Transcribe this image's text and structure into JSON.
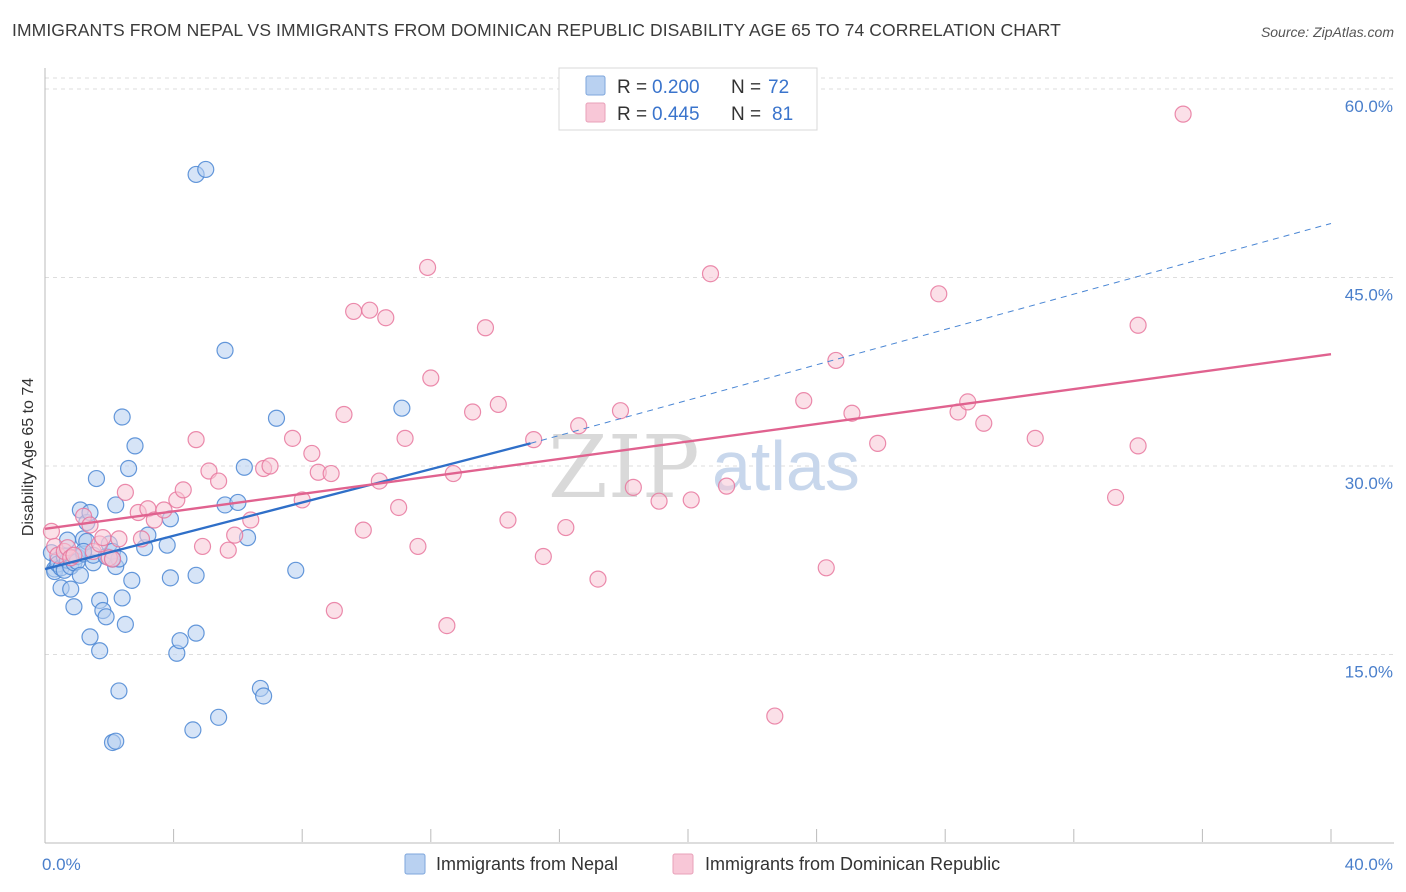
{
  "header": {
    "title": "IMMIGRANTS FROM NEPAL VS IMMIGRANTS FROM DOMINICAN REPUBLIC DISABILITY AGE 65 TO 74 CORRELATION CHART",
    "source": "Source: ZipAtlas.com"
  },
  "watermark": {
    "part1": "ZIP",
    "part2": "atlas"
  },
  "colors": {
    "nepal": "#4a86d4",
    "nepal_fill": "#b4cdf0",
    "dominican": "#e8779e",
    "dominican_fill": "#f7c6d6",
    "tick_text": "#4a7fcb",
    "grid": "#dddddd"
  },
  "legend": {
    "rows": [
      {
        "r_label": "R =",
        "r_value": "0.200",
        "n_label": "N =",
        "n_value": "72"
      },
      {
        "r_label": "R =",
        "r_value": "0.445",
        "n_label": "N =",
        "n_value": "81"
      }
    ]
  },
  "bottom_legend": [
    "Immigrants from Nepal",
    "Immigrants from Dominican Republic"
  ],
  "chart_data": {
    "type": "scatter",
    "title": "IMMIGRANTS FROM NEPAL VS IMMIGRANTS FROM DOMINICAN REPUBLIC DISABILITY AGE 65 TO 74 CORRELATION CHART",
    "xlabel": "",
    "ylabel": "Disability Age 65 to 74",
    "xlim": [
      0,
      40
    ],
    "ylim": [
      0,
      63
    ],
    "x_ticks": [
      {
        "value": 0,
        "label": "0.0%"
      },
      {
        "value": 40,
        "label": "40.0%"
      }
    ],
    "y_ticks": [
      {
        "value": 15,
        "label": "15.0%"
      },
      {
        "value": 30,
        "label": "30.0%"
      },
      {
        "value": 45,
        "label": "45.0%"
      },
      {
        "value": 60,
        "label": "60.0%"
      }
    ],
    "series": [
      {
        "name": "Immigrants from Nepal",
        "r": 0.2,
        "n": 72,
        "trend": {
          "x0": 0,
          "y0": 21.8,
          "x1": 15.1,
          "y1": 31.8,
          "dash_x1": 40,
          "dash_y1": 49.3
        },
        "points": [
          [
            0.2,
            23.1
          ],
          [
            0.3,
            21.8
          ],
          [
            0.3,
            21.6
          ],
          [
            0.4,
            22.5
          ],
          [
            0.4,
            22.2
          ],
          [
            0.5,
            21.9
          ],
          [
            0.5,
            20.3
          ],
          [
            0.6,
            21.7
          ],
          [
            0.6,
            22.8
          ],
          [
            0.7,
            22.5
          ],
          [
            0.8,
            22.0
          ],
          [
            0.8,
            20.2
          ],
          [
            0.9,
            18.8
          ],
          [
            0.9,
            22.3
          ],
          [
            1.0,
            22.8
          ],
          [
            1.0,
            22.4
          ],
          [
            1.1,
            26.5
          ],
          [
            1.2,
            24.2
          ],
          [
            1.2,
            23.0
          ],
          [
            1.3,
            25.5
          ],
          [
            1.4,
            16.4
          ],
          [
            1.4,
            26.3
          ],
          [
            1.5,
            22.3
          ],
          [
            1.5,
            22.9
          ],
          [
            1.6,
            29.0
          ],
          [
            1.7,
            19.3
          ],
          [
            1.7,
            15.3
          ],
          [
            1.8,
            18.5
          ],
          [
            1.9,
            18.0
          ],
          [
            1.9,
            22.8
          ],
          [
            2.0,
            23.8
          ],
          [
            2.1,
            23.2
          ],
          [
            2.2,
            22.0
          ],
          [
            2.2,
            26.9
          ],
          [
            2.3,
            12.1
          ],
          [
            2.3,
            22.6
          ],
          [
            2.4,
            19.5
          ],
          [
            2.4,
            33.9
          ],
          [
            2.5,
            17.4
          ],
          [
            2.6,
            29.8
          ],
          [
            2.7,
            20.9
          ],
          [
            2.8,
            31.6
          ],
          [
            3.1,
            23.5
          ],
          [
            3.2,
            24.5
          ],
          [
            3.8,
            23.7
          ],
          [
            3.9,
            21.1
          ],
          [
            3.9,
            25.8
          ],
          [
            4.1,
            15.1
          ],
          [
            4.2,
            16.1
          ],
          [
            4.6,
            9.0
          ],
          [
            4.7,
            16.7
          ],
          [
            4.7,
            21.3
          ],
          [
            4.7,
            53.2
          ],
          [
            5.0,
            53.6
          ],
          [
            5.4,
            10.0
          ],
          [
            5.6,
            26.9
          ],
          [
            5.6,
            39.2
          ],
          [
            6.0,
            27.1
          ],
          [
            6.2,
            29.9
          ],
          [
            6.3,
            24.3
          ],
          [
            6.7,
            12.3
          ],
          [
            6.8,
            11.7
          ],
          [
            7.2,
            33.8
          ],
          [
            7.8,
            21.7
          ],
          [
            11.1,
            34.6
          ],
          [
            1.1,
            21.3
          ],
          [
            0.7,
            24.1
          ],
          [
            2.1,
            8.0
          ],
          [
            2.2,
            8.1
          ],
          [
            1.3,
            24.0
          ],
          [
            1.2,
            23.2
          ],
          [
            2.1,
            22.6
          ]
        ]
      },
      {
        "name": "Immigrants from Dominican Republic",
        "r": 0.445,
        "n": 81,
        "trend": {
          "x0": 0,
          "y0": 25.0,
          "x1": 40,
          "y1": 38.9
        },
        "points": [
          [
            0.2,
            24.8
          ],
          [
            0.3,
            23.6
          ],
          [
            0.4,
            22.9
          ],
          [
            0.6,
            23.2
          ],
          [
            0.7,
            23.5
          ],
          [
            0.8,
            22.7
          ],
          [
            0.9,
            22.9
          ],
          [
            1.2,
            26.0
          ],
          [
            1.4,
            25.3
          ],
          [
            1.5,
            23.2
          ],
          [
            1.7,
            23.8
          ],
          [
            1.8,
            24.3
          ],
          [
            2.0,
            22.7
          ],
          [
            2.1,
            22.6
          ],
          [
            2.3,
            24.2
          ],
          [
            2.5,
            27.9
          ],
          [
            2.9,
            26.3
          ],
          [
            3.0,
            24.2
          ],
          [
            3.2,
            26.6
          ],
          [
            3.4,
            25.7
          ],
          [
            3.7,
            26.5
          ],
          [
            4.1,
            27.3
          ],
          [
            4.3,
            28.1
          ],
          [
            4.7,
            32.1
          ],
          [
            4.9,
            23.6
          ],
          [
            5.1,
            29.6
          ],
          [
            5.4,
            28.8
          ],
          [
            5.7,
            23.3
          ],
          [
            5.9,
            24.5
          ],
          [
            6.4,
            25.7
          ],
          [
            6.8,
            29.8
          ],
          [
            7.0,
            30.0
          ],
          [
            7.7,
            32.2
          ],
          [
            8.0,
            27.3
          ],
          [
            8.3,
            31.0
          ],
          [
            8.5,
            29.5
          ],
          [
            8.9,
            29.4
          ],
          [
            9.0,
            18.5
          ],
          [
            9.3,
            34.1
          ],
          [
            9.6,
            42.3
          ],
          [
            9.9,
            24.9
          ],
          [
            10.1,
            42.4
          ],
          [
            10.4,
            28.8
          ],
          [
            10.6,
            41.8
          ],
          [
            11.0,
            26.7
          ],
          [
            11.2,
            32.2
          ],
          [
            11.6,
            23.6
          ],
          [
            11.9,
            45.8
          ],
          [
            12.0,
            37.0
          ],
          [
            12.5,
            17.3
          ],
          [
            12.7,
            29.4
          ],
          [
            13.3,
            34.3
          ],
          [
            13.7,
            41.0
          ],
          [
            14.1,
            34.9
          ],
          [
            14.4,
            25.7
          ],
          [
            15.2,
            32.1
          ],
          [
            15.5,
            22.8
          ],
          [
            16.2,
            25.1
          ],
          [
            16.6,
            33.2
          ],
          [
            17.2,
            21.0
          ],
          [
            17.9,
            34.4
          ],
          [
            18.3,
            28.3
          ],
          [
            19.1,
            27.2
          ],
          [
            20.1,
            27.3
          ],
          [
            20.7,
            45.3
          ],
          [
            21.2,
            28.4
          ],
          [
            22.7,
            10.1
          ],
          [
            23.6,
            35.2
          ],
          [
            24.3,
            21.9
          ],
          [
            24.6,
            38.4
          ],
          [
            25.1,
            34.2
          ],
          [
            25.9,
            31.8
          ],
          [
            27.8,
            43.7
          ],
          [
            28.4,
            34.3
          ],
          [
            28.7,
            35.1
          ],
          [
            29.2,
            33.4
          ],
          [
            30.8,
            32.2
          ],
          [
            33.3,
            27.5
          ],
          [
            34.0,
            41.2
          ],
          [
            34.0,
            31.6
          ],
          [
            35.4,
            58.0
          ]
        ]
      }
    ]
  }
}
